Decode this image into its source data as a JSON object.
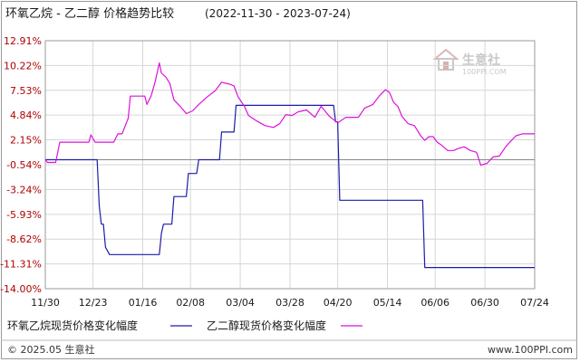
{
  "header": {
    "title": "环氧乙烷 - 乙二醇 价格趋势比较",
    "date_range": "(2022-11-30 - 2023-07-24)"
  },
  "watermark": {
    "name": "生意社",
    "url": "100PPI.COM"
  },
  "footer": {
    "copyright": "© 2025.05 生意社",
    "site": "www.100PPI.com"
  },
  "colors": {
    "series1": "#1c1caa",
    "series2": "#dd11dd",
    "grid": "#d6d6d6",
    "ytick": "#b00000"
  },
  "chart_data": {
    "type": "line",
    "title": "环氧乙烷 - 乙二醇 价格趋势比较",
    "ylim": [
      -14.0,
      12.91
    ],
    "y_ticks": [
      "12.91%",
      "10.22%",
      "7.53%",
      "4.84%",
      "2.15%",
      "-0.54%",
      "-3.24%",
      "-5.93%",
      "-8.62%",
      "-11.31%",
      "-14.00%"
    ],
    "y_tick_values": [
      12.91,
      10.22,
      7.53,
      4.84,
      2.15,
      -0.54,
      -3.24,
      -5.93,
      -8.62,
      -11.31,
      -14.0
    ],
    "x_ticks": [
      "11/30",
      "12/23",
      "01/16",
      "02/08",
      "03/04",
      "03/28",
      "04/20",
      "05/14",
      "06/06",
      "06/30",
      "07/24"
    ],
    "x_tick_dates": [
      "2022-11-30",
      "2022-12-23",
      "2023-01-16",
      "2023-02-08",
      "2023-03-04",
      "2023-03-28",
      "2023-04-20",
      "2023-05-14",
      "2023-06-06",
      "2023-06-30",
      "2023-07-24"
    ],
    "grid": true,
    "legend_position": "bottom",
    "series": [
      {
        "name": "环氧乙烷现货价格变化幅度",
        "color": "#1c1caa",
        "points": [
          [
            "2022-11-30",
            0
          ],
          [
            "2022-12-25",
            0
          ],
          [
            "2022-12-26",
            -5.0
          ],
          [
            "2022-12-27",
            -7.0
          ],
          [
            "2022-12-28",
            -7.0
          ],
          [
            "2022-12-29",
            -9.5
          ],
          [
            "2022-12-31",
            -10.3
          ],
          [
            "2023-01-24",
            -10.3
          ],
          [
            "2023-01-25",
            -8.0
          ],
          [
            "2023-01-26",
            -7.0
          ],
          [
            "2023-01-30",
            -7.0
          ],
          [
            "2023-01-31",
            -4.0
          ],
          [
            "2023-02-06",
            -4.0
          ],
          [
            "2023-02-07",
            -1.5
          ],
          [
            "2023-02-11",
            -1.5
          ],
          [
            "2023-02-12",
            0
          ],
          [
            "2023-02-22",
            0
          ],
          [
            "2023-02-23",
            3.0
          ],
          [
            "2023-03-01",
            3.0
          ],
          [
            "2023-03-02",
            5.9
          ],
          [
            "2023-04-18",
            5.9
          ],
          [
            "2023-04-19",
            4.1
          ],
          [
            "2023-04-20",
            4.1
          ],
          [
            "2023-04-21",
            -4.4
          ],
          [
            "2023-05-31",
            -4.4
          ],
          [
            "2023-06-01",
            -11.7
          ],
          [
            "2023-07-24",
            -11.7
          ]
        ]
      },
      {
        "name": "乙二醇现货价格变化幅度",
        "color": "#dd11dd",
        "points": [
          [
            "2022-11-30",
            0
          ],
          [
            "2022-12-01",
            -0.3
          ],
          [
            "2022-12-05",
            -0.3
          ],
          [
            "2022-12-07",
            1.9
          ],
          [
            "2022-12-21",
            1.9
          ],
          [
            "2022-12-22",
            2.7
          ],
          [
            "2022-12-24",
            1.9
          ],
          [
            "2023-01-02",
            1.9
          ],
          [
            "2023-01-04",
            2.8
          ],
          [
            "2023-01-06",
            2.8
          ],
          [
            "2023-01-09",
            4.5
          ],
          [
            "2023-01-10",
            6.9
          ],
          [
            "2023-01-17",
            6.9
          ],
          [
            "2023-01-18",
            6.0
          ],
          [
            "2023-01-20",
            6.9
          ],
          [
            "2023-01-22",
            8.5
          ],
          [
            "2023-01-24",
            10.5
          ],
          [
            "2023-01-25",
            9.4
          ],
          [
            "2023-01-27",
            9.0
          ],
          [
            "2023-01-29",
            8.3
          ],
          [
            "2023-01-31",
            6.5
          ],
          [
            "2023-02-03",
            5.8
          ],
          [
            "2023-02-06",
            5.0
          ],
          [
            "2023-02-09",
            5.3
          ],
          [
            "2023-02-12",
            6.0
          ],
          [
            "2023-02-16",
            6.8
          ],
          [
            "2023-02-20",
            7.5
          ],
          [
            "2023-02-23",
            8.4
          ],
          [
            "2023-02-27",
            8.2
          ],
          [
            "2023-03-01",
            8.0
          ],
          [
            "2023-03-03",
            6.8
          ],
          [
            "2023-03-06",
            5.8
          ],
          [
            "2023-03-08",
            4.8
          ],
          [
            "2023-03-12",
            4.2
          ],
          [
            "2023-03-16",
            3.7
          ],
          [
            "2023-03-20",
            3.5
          ],
          [
            "2023-03-23",
            3.9
          ],
          [
            "2023-03-26",
            4.9
          ],
          [
            "2023-03-29",
            4.8
          ],
          [
            "2023-04-01",
            5.2
          ],
          [
            "2023-04-05",
            5.4
          ],
          [
            "2023-04-09",
            4.6
          ],
          [
            "2023-04-12",
            5.8
          ],
          [
            "2023-04-16",
            4.7
          ],
          [
            "2023-04-20",
            4.0
          ],
          [
            "2023-04-24",
            4.6
          ],
          [
            "2023-04-30",
            4.6
          ],
          [
            "2023-05-03",
            5.6
          ],
          [
            "2023-05-07",
            6.0
          ],
          [
            "2023-05-10",
            6.9
          ],
          [
            "2023-05-13",
            7.6
          ],
          [
            "2023-05-15",
            7.3
          ],
          [
            "2023-05-17",
            6.2
          ],
          [
            "2023-05-19",
            5.8
          ],
          [
            "2023-05-21",
            4.7
          ],
          [
            "2023-05-24",
            3.9
          ],
          [
            "2023-05-27",
            3.7
          ],
          [
            "2023-05-30",
            2.6
          ],
          [
            "2023-06-01",
            2.1
          ],
          [
            "2023-06-03",
            2.5
          ],
          [
            "2023-06-05",
            2.5
          ],
          [
            "2023-06-07",
            1.9
          ],
          [
            "2023-06-09",
            1.6
          ],
          [
            "2023-06-12",
            1.0
          ],
          [
            "2023-06-15",
            1.0
          ],
          [
            "2023-06-17",
            1.2
          ],
          [
            "2023-06-20",
            1.4
          ],
          [
            "2023-06-23",
            1.0
          ],
          [
            "2023-06-26",
            0.8
          ],
          [
            "2023-06-28",
            -0.6
          ],
          [
            "2023-07-01",
            -0.4
          ],
          [
            "2023-07-04",
            0.3
          ],
          [
            "2023-07-07",
            0.4
          ],
          [
            "2023-07-10",
            1.4
          ],
          [
            "2023-07-12",
            1.9
          ],
          [
            "2023-07-15",
            2.6
          ],
          [
            "2023-07-18",
            2.8
          ],
          [
            "2023-07-24",
            2.8
          ]
        ]
      }
    ]
  }
}
